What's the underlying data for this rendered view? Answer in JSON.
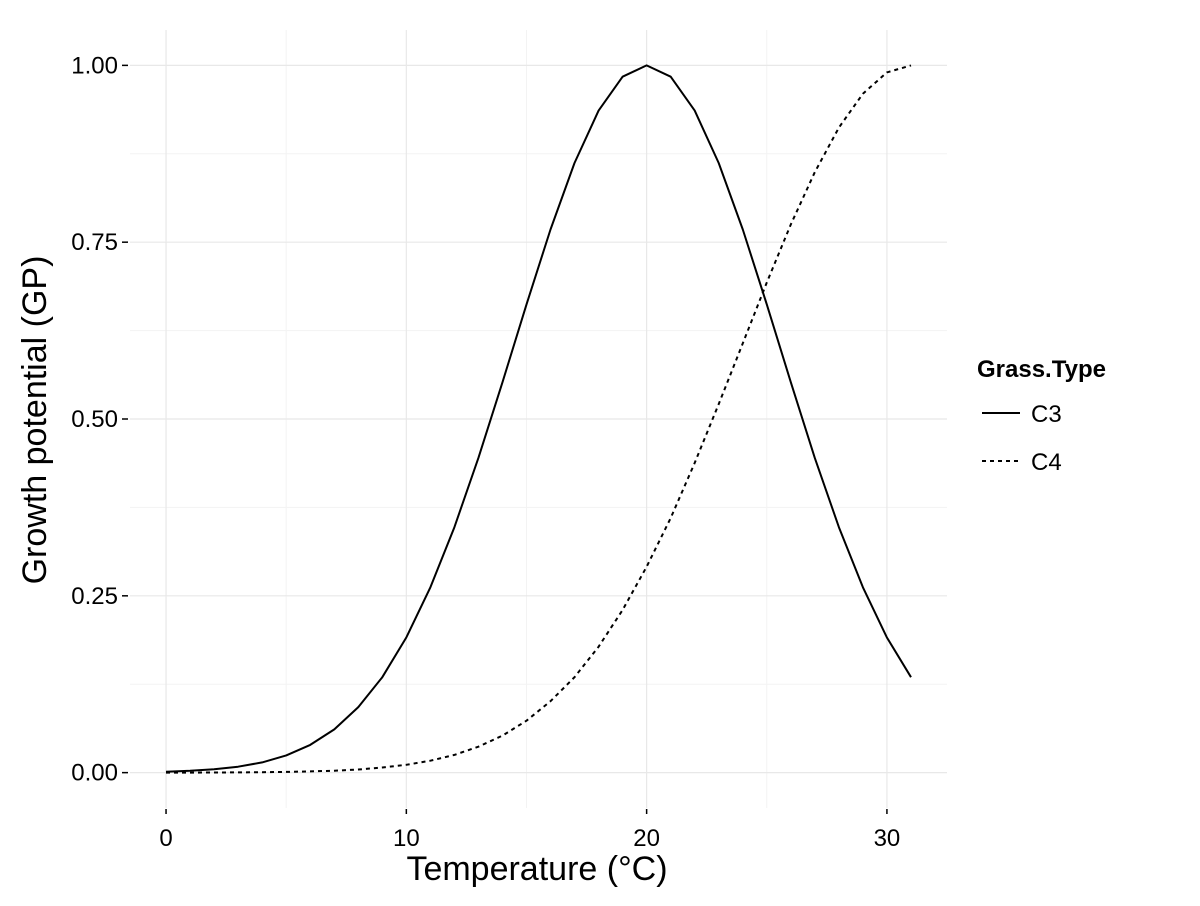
{
  "chart_data": {
    "type": "line",
    "xlabel": "Temperature (°C)",
    "ylabel": "Growth potential (GP)",
    "xlim": [
      -1.5,
      32.5
    ],
    "ylim": [
      -0.05,
      1.05
    ],
    "x_ticks": [
      0,
      10,
      20,
      30
    ],
    "x_tick_labels": [
      "0",
      "10",
      "20",
      "30"
    ],
    "y_ticks": [
      0,
      0.25,
      0.5,
      0.75,
      1.0
    ],
    "y_tick_labels": [
      "0.00",
      "0.25",
      "0.50",
      "0.75",
      "1.00"
    ],
    "grid": true,
    "legend": {
      "title": "Grass.Type",
      "placement": "right"
    },
    "x": [
      0,
      1,
      2,
      3,
      4,
      5,
      6,
      7,
      8,
      9,
      10,
      11,
      12,
      13,
      14,
      15,
      16,
      17,
      18,
      19,
      20,
      21,
      22,
      23,
      24,
      25,
      26,
      27,
      28,
      29,
      30,
      31
    ],
    "series": [
      {
        "name": "C3",
        "line_style": "solid",
        "color": "#000000",
        "values": [
          0.0013,
          0.0026,
          0.0047,
          0.0084,
          0.0145,
          0.0243,
          0.0392,
          0.0612,
          0.0926,
          0.135,
          0.191,
          0.262,
          0.347,
          0.445,
          0.552,
          0.662,
          0.768,
          0.862,
          0.936,
          0.984,
          1.0,
          0.984,
          0.936,
          0.862,
          0.768,
          0.662,
          0.552,
          0.445,
          0.347,
          0.262,
          0.191,
          0.135
        ]
      },
      {
        "name": "C4",
        "line_style": "dashed",
        "color": "#000000",
        "values": [
          0.0001,
          0.0001,
          0.0002,
          0.0003,
          0.0006,
          0.001,
          0.0017,
          0.0028,
          0.0045,
          0.0072,
          0.0111,
          0.0169,
          0.0251,
          0.0367,
          0.0524,
          0.0734,
          0.101,
          0.135,
          0.178,
          0.23,
          0.291,
          0.36,
          0.438,
          0.521,
          0.607,
          0.693,
          0.775,
          0.849,
          0.912,
          0.96,
          0.99,
          1.0
        ]
      }
    ]
  }
}
